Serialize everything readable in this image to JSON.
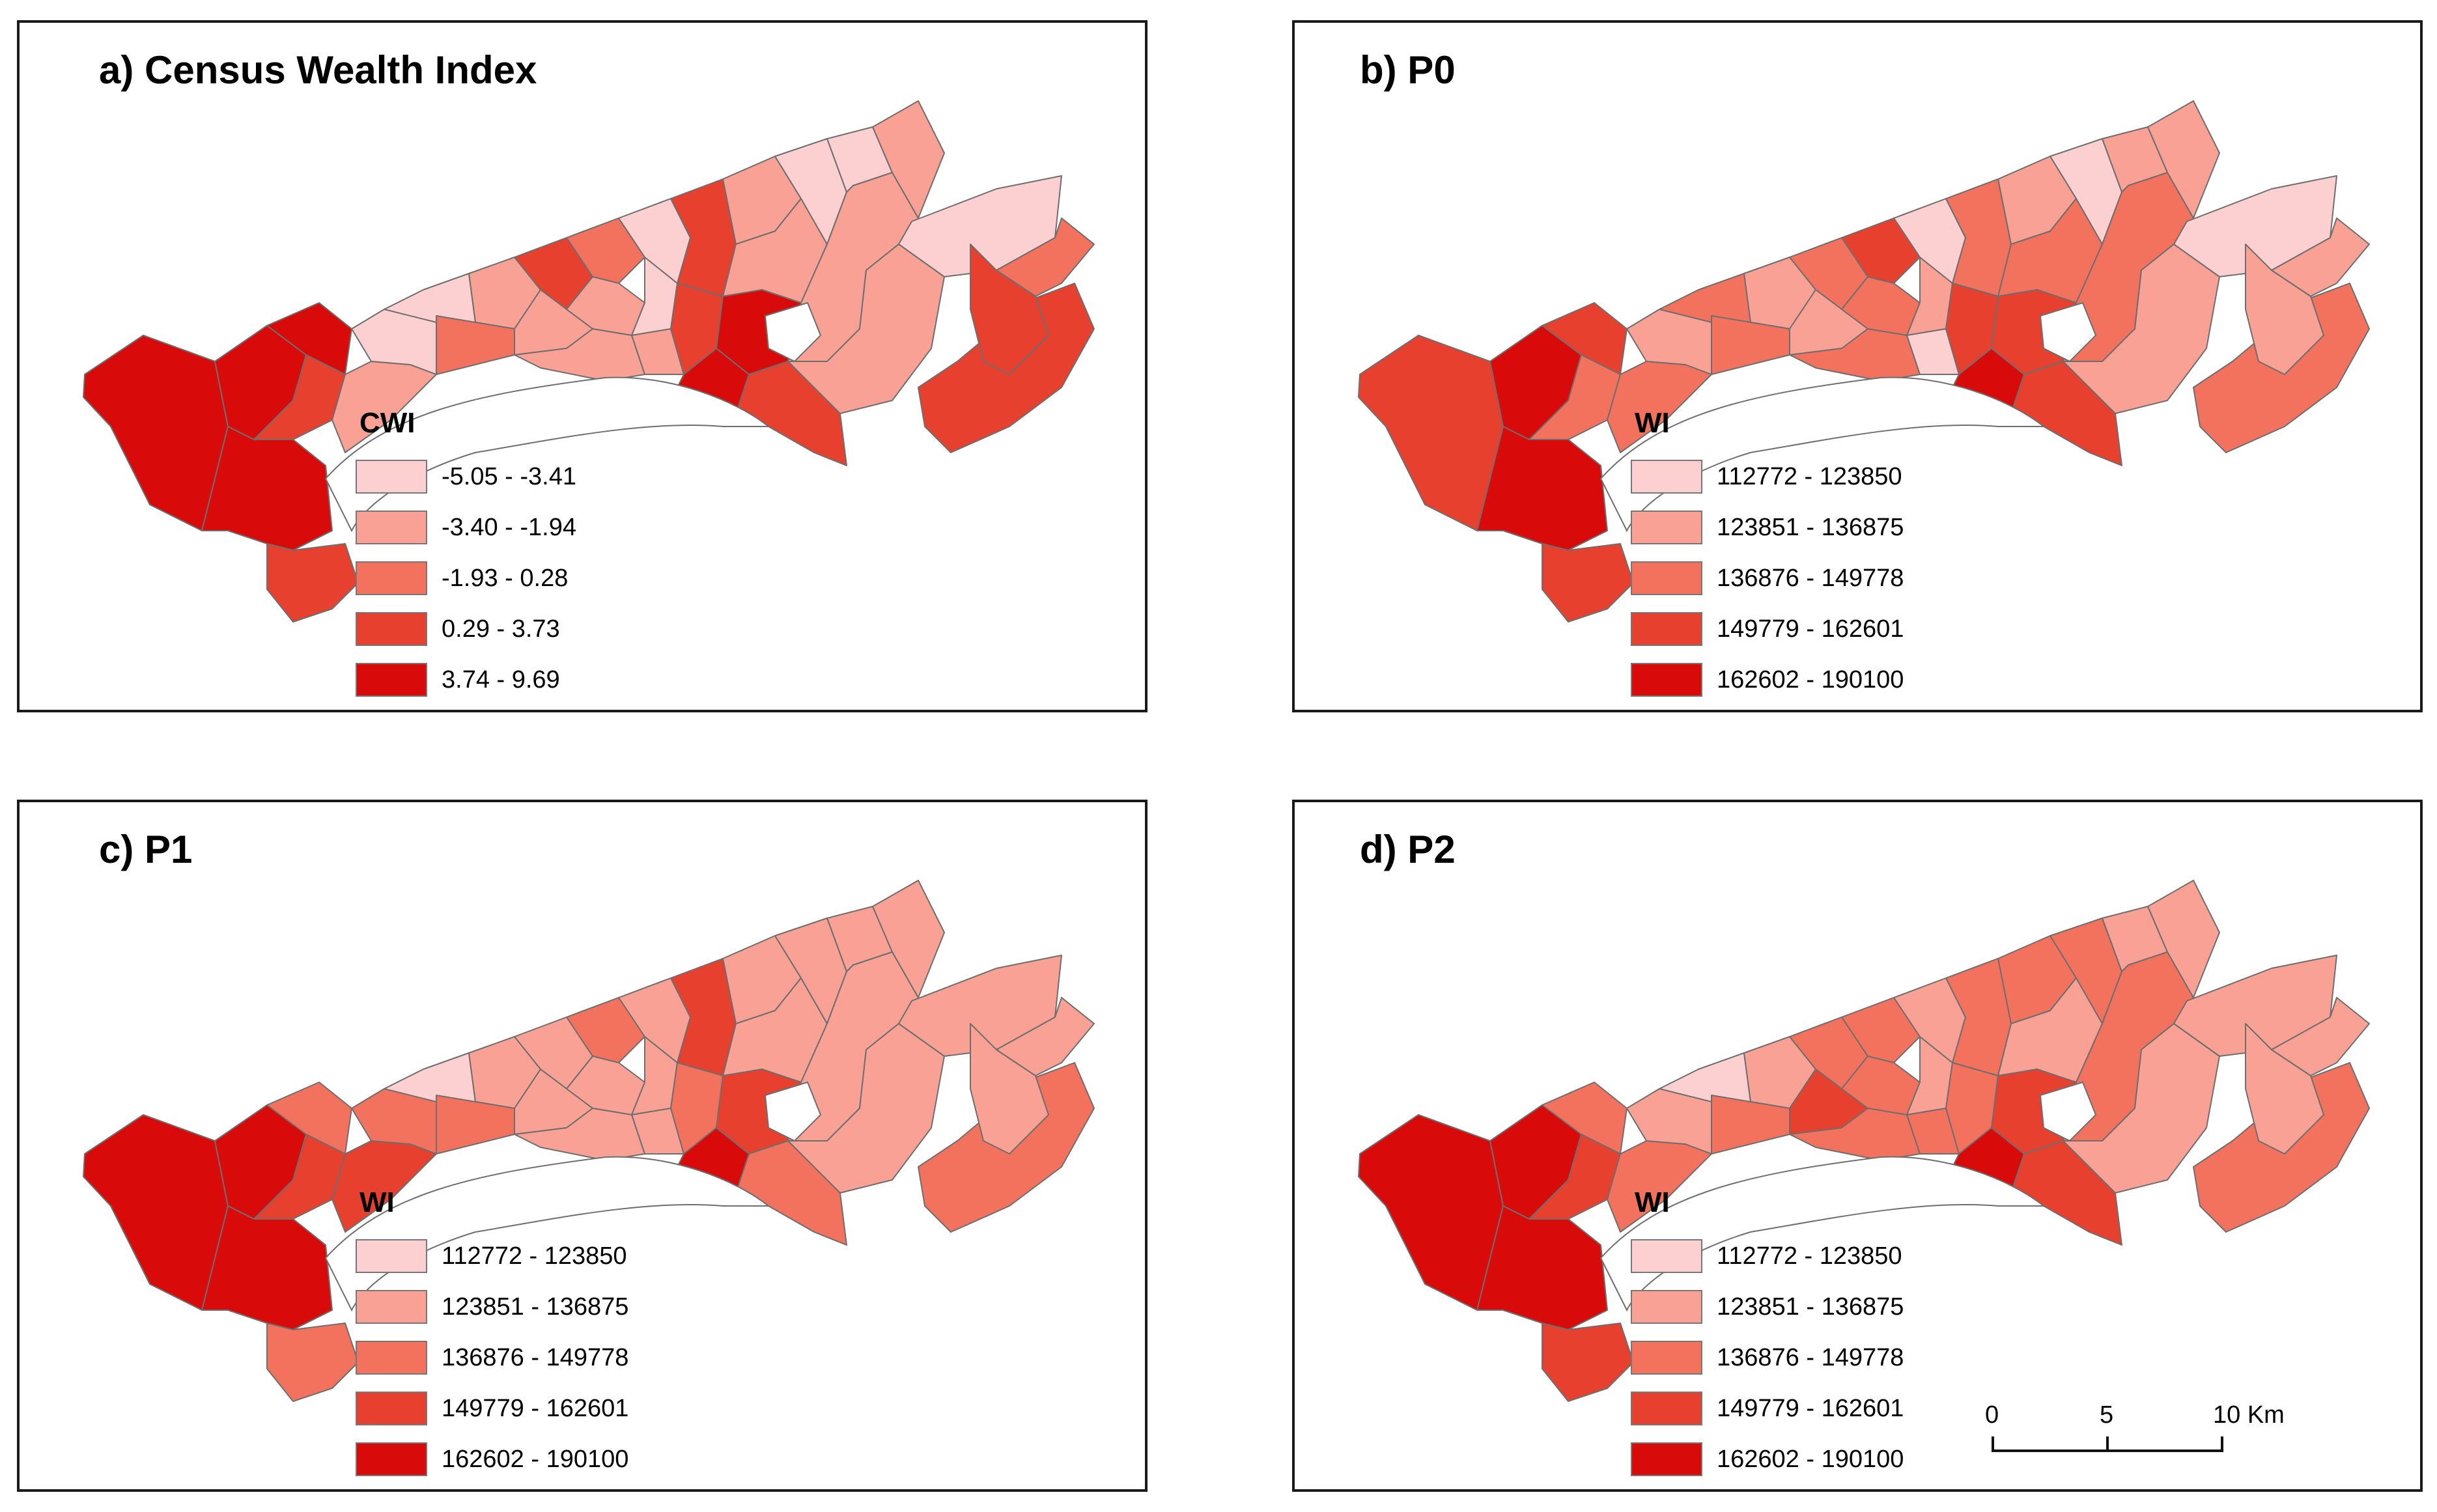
{
  "colors": [
    "#fcd0d0",
    "#f8a194",
    "#f3725e",
    "#e8402e",
    "#d80a0a"
  ],
  "panels": [
    {
      "id": "a",
      "title": "a) Census Wealth Index",
      "legend_title": "CWI",
      "legend": [
        "-5.05 - -3.41",
        "-3.40 - -1.94",
        "-1.93 - 0.28",
        "0.29 - 3.73",
        "3.74 - 9.69"
      ]
    },
    {
      "id": "b",
      "title": "b) P0",
      "legend_title": "WI",
      "legend": [
        "112772 - 123850",
        "123851 - 136875",
        "136876 - 149778",
        "149779 - 162601",
        "162602 - 190100"
      ]
    },
    {
      "id": "c",
      "title": "c) P1",
      "legend_title": "WI",
      "legend": [
        "112772 - 123850",
        "123851 - 136875",
        "136876 - 149778",
        "149779 - 162601",
        "162602 - 190100"
      ]
    },
    {
      "id": "d",
      "title": "d) P2",
      "legend_title": "WI",
      "legend": [
        "112772 - 123850",
        "123851 - 136875",
        "136876 - 149778",
        "149779 - 162601",
        "162602 - 190100"
      ]
    }
  ],
  "scalebar": {
    "labels": [
      "0",
      "5",
      "10 Km"
    ]
  },
  "region_classes": {
    "a": [
      4,
      4,
      4,
      3,
      4,
      3,
      1,
      0,
      0,
      1,
      2,
      3,
      1,
      2,
      1,
      1,
      0,
      0,
      1,
      3,
      3,
      1,
      1,
      0,
      0,
      4,
      4,
      3,
      1,
      1,
      1,
      0,
      3,
      3,
      2
    ],
    "b": [
      3,
      4,
      3,
      2,
      4,
      3,
      2,
      1,
      2,
      1,
      2,
      2,
      1,
      3,
      2,
      2,
      1,
      0,
      0,
      2,
      3,
      1,
      2,
      0,
      1,
      4,
      3,
      3,
      2,
      1,
      1,
      0,
      2,
      1,
      1
    ],
    "c": [
      4,
      4,
      2,
      3,
      4,
      2,
      3,
      2,
      0,
      1,
      2,
      1,
      1,
      2,
      1,
      1,
      1,
      1,
      1,
      3,
      2,
      1,
      1,
      1,
      1,
      4,
      3,
      2,
      1,
      1,
      1,
      1,
      2,
      1,
      1
    ],
    "d": [
      4,
      4,
      2,
      3,
      4,
      3,
      2,
      1,
      0,
      1,
      2,
      2,
      3,
      2,
      2,
      2,
      1,
      1,
      2,
      2,
      2,
      2,
      1,
      2,
      1,
      4,
      3,
      3,
      2,
      1,
      1,
      1,
      2,
      1,
      1
    ]
  }
}
